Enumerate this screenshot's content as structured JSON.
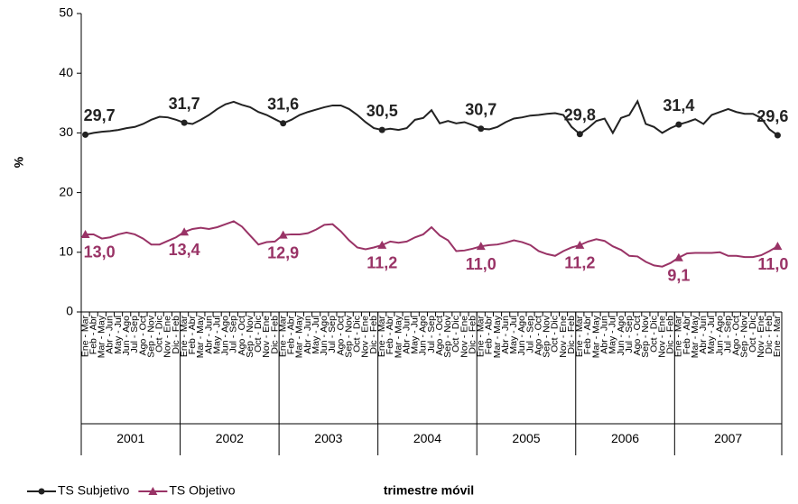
{
  "chart_data": {
    "type": "line",
    "y_label": "%",
    "x_label": "trimestre móvil",
    "categories": [
      "Ene - Mar",
      "Feb - Abr",
      "Mar - May",
      "Abr - Jun",
      "May - Jul",
      "Jun - Ago",
      "Jul - Sep",
      "Ago - Oct",
      "Sep - Nov",
      "Oct - Dic",
      "Nov - Ene",
      "Dic - Feb",
      "Ene - Mar",
      "Feb - Abr",
      "Mar - May",
      "Abr - Jun",
      "May - Jul",
      "Jun - Ago",
      "Jul - Sep",
      "Ago - Oct",
      "Sep - Nov",
      "Oct - Dic",
      "Nov - Ene",
      "Dic - Feb",
      "Ene - Mar",
      "Feb - Abr",
      "Mar - May",
      "Abr - Jun",
      "May - Jul",
      "Jun - Ago",
      "Jul - Sep",
      "Ago - Oct",
      "Sep - Nov",
      "Oct - Dic",
      "Nov - Ene",
      "Dic - Feb",
      "Ene - Mar",
      "Feb - Abr",
      "Mar - May",
      "Abr - Jun",
      "May - Jul",
      "Jun - Ago",
      "Jul - Sep",
      "Ago - Oct",
      "Sep - Nov",
      "Oct - Dic",
      "Nov - Ene",
      "Dic - Feb",
      "Ene - Mar",
      "Feb - Abr",
      "Mar - May",
      "Abr - Jun",
      "May - Jul",
      "Jun - Ago",
      "Jul - Sep",
      "Ago - Oct",
      "Sep - Nov",
      "Oct - Dic",
      "Nov - Ene",
      "Dic - Feb",
      "Ene - Mar",
      "Feb - Abr",
      "Mar - May",
      "Abr - Jun",
      "May - Jul",
      "Jun - Ago",
      "Jul - Sep",
      "Ago - Oct",
      "Sep - Nov",
      "Oct - Dic",
      "Nov - Ene",
      "Dic - Feb",
      "Ene - Mar",
      "Feb - Abr",
      "Mar - May",
      "Abr - Jun",
      "May - Jul",
      "Jun - Ago",
      "Jul - Sep",
      "Ago - Oct",
      "Sep - Nov",
      "Oct - Dic",
      "Nov - Ene",
      "Dic - Feb",
      "Ene - Mar"
    ],
    "year_groups": [
      "2001",
      "2002",
      "2003",
      "2004",
      "2005",
      "2006",
      "2007"
    ],
    "series": [
      {
        "name": "TS Subjetivo",
        "color": "#222222",
        "marker": "circle",
        "values": [
          29.7,
          30.0,
          30.2,
          30.3,
          30.5,
          30.8,
          31.0,
          31.5,
          32.2,
          32.7,
          32.6,
          32.2,
          31.7,
          31.5,
          32.2,
          33.0,
          34.0,
          34.8,
          35.2,
          34.7,
          34.3,
          33.5,
          33.0,
          32.3,
          31.6,
          32.2,
          33.0,
          33.5,
          33.9,
          34.3,
          34.6,
          34.6,
          34.0,
          33.0,
          31.8,
          30.8,
          30.5,
          30.7,
          30.5,
          30.8,
          32.2,
          32.5,
          33.8,
          31.6,
          32.0,
          31.6,
          31.8,
          31.3,
          30.7,
          30.6,
          31.0,
          31.8,
          32.4,
          32.6,
          32.9,
          33.0,
          33.2,
          33.3,
          33.0,
          31.0,
          29.8,
          30.8,
          32.0,
          32.4,
          30.0,
          32.5,
          33.0,
          35.3,
          31.5,
          31.0,
          30.0,
          30.8,
          31.4,
          31.8,
          32.3,
          31.5,
          33.0,
          33.5,
          34.0,
          33.5,
          33.2,
          33.2,
          32.5,
          30.6,
          29.6
        ],
        "value_labels": [
          "29,7",
          null,
          null,
          null,
          null,
          null,
          null,
          null,
          null,
          null,
          null,
          null,
          "31,7",
          null,
          null,
          null,
          null,
          null,
          null,
          null,
          null,
          null,
          null,
          null,
          "31,6",
          null,
          null,
          null,
          null,
          null,
          null,
          null,
          null,
          null,
          null,
          null,
          "30,5",
          null,
          null,
          null,
          null,
          null,
          null,
          null,
          null,
          null,
          null,
          null,
          "30,7",
          null,
          null,
          null,
          null,
          null,
          null,
          null,
          null,
          null,
          null,
          null,
          "29,8",
          null,
          null,
          null,
          null,
          null,
          null,
          null,
          null,
          null,
          null,
          null,
          "31,4",
          null,
          null,
          null,
          null,
          null,
          null,
          null,
          null,
          null,
          null,
          null,
          "29,6"
        ]
      },
      {
        "name": "TS Objetivo",
        "color": "#993366",
        "marker": "triangle",
        "values": [
          13.0,
          13.0,
          12.3,
          12.5,
          13.0,
          13.3,
          13.0,
          12.3,
          11.3,
          11.3,
          11.9,
          12.5,
          13.4,
          13.9,
          14.1,
          13.9,
          14.2,
          14.7,
          15.2,
          14.3,
          12.8,
          11.3,
          11.7,
          11.8,
          12.9,
          13.0,
          13.0,
          13.2,
          13.8,
          14.6,
          14.7,
          13.5,
          12.0,
          10.8,
          10.5,
          10.8,
          11.2,
          11.8,
          11.6,
          11.8,
          12.5,
          13.0,
          14.2,
          12.8,
          12.0,
          10.2,
          10.3,
          10.6,
          11.0,
          11.2,
          11.3,
          11.6,
          12.0,
          11.7,
          11.2,
          10.2,
          9.7,
          9.4,
          10.2,
          10.8,
          11.2,
          11.8,
          12.2,
          11.9,
          11.0,
          10.4,
          9.4,
          9.3,
          8.4,
          7.8,
          7.6,
          8.2,
          9.1,
          9.8,
          9.9,
          9.9,
          9.9,
          10.0,
          9.4,
          9.4,
          9.2,
          9.2,
          9.5,
          10.2,
          11.0
        ],
        "value_labels": [
          "13,0",
          null,
          null,
          null,
          null,
          null,
          null,
          null,
          null,
          null,
          null,
          null,
          "13,4",
          null,
          null,
          null,
          null,
          null,
          null,
          null,
          null,
          null,
          null,
          null,
          "12,9",
          null,
          null,
          null,
          null,
          null,
          null,
          null,
          null,
          null,
          null,
          null,
          "11,2",
          null,
          null,
          null,
          null,
          null,
          null,
          null,
          null,
          null,
          null,
          null,
          "11,0",
          null,
          null,
          null,
          null,
          null,
          null,
          null,
          null,
          null,
          null,
          null,
          "11,2",
          null,
          null,
          null,
          null,
          null,
          null,
          null,
          null,
          null,
          null,
          null,
          "9,1",
          null,
          null,
          null,
          null,
          null,
          null,
          null,
          null,
          null,
          null,
          null,
          "11,0"
        ]
      }
    ],
    "ylim": [
      0,
      50
    ],
    "yticks": [
      0,
      10,
      20,
      30,
      40,
      50
    ]
  }
}
